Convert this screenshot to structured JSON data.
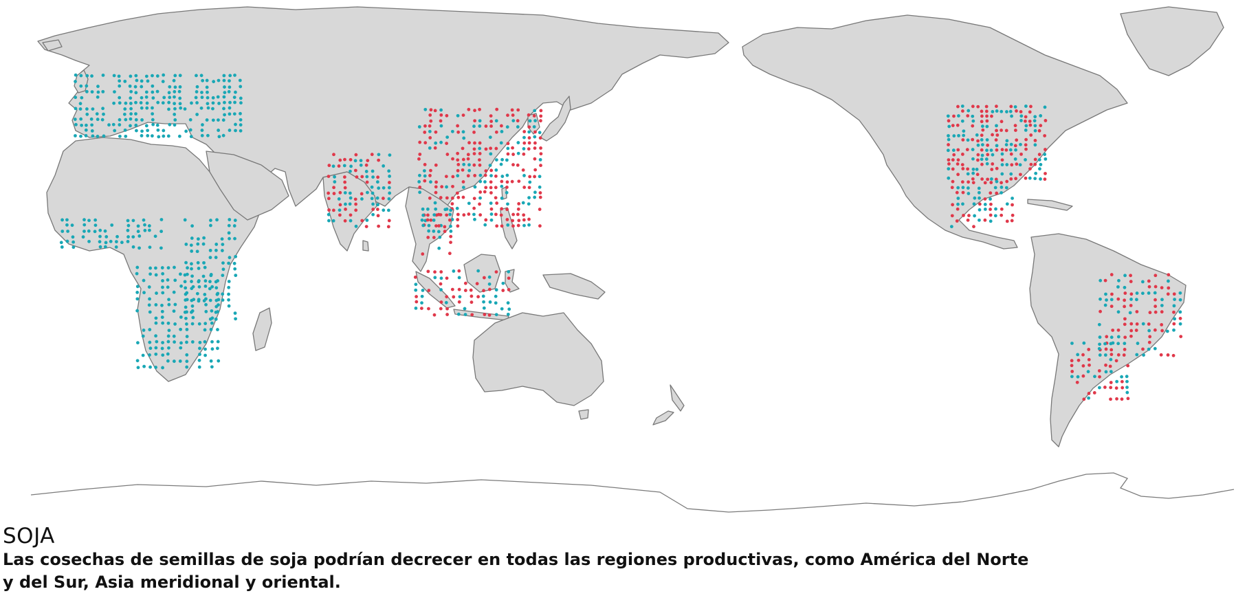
{
  "caption": {
    "title": "SOJA",
    "text": "Las cosechas de semillas de soja podrían decrecer en todas las regiones productivas, como América del Norte y del Sur, Asia meridional y oriental."
  },
  "colors": {
    "land": "#d8d8d8",
    "coastline": "#777777",
    "increase_dots": "#19a7b5",
    "decrease_dots": "#e0384a"
  },
  "map": {
    "projection": "equirectangular, Pacific-centred",
    "dot_clusters": [
      {
        "region": "Europe",
        "color": "increase_dots"
      },
      {
        "region": "West Africa",
        "color": "increase_dots"
      },
      {
        "region": "East Africa",
        "color": "increase_dots"
      },
      {
        "region": "Southern Africa",
        "color": "increase_dots"
      },
      {
        "region": "India",
        "color": "mixed"
      },
      {
        "region": "China",
        "color": "mixed"
      },
      {
        "region": "Southeast Asia",
        "color": "mixed"
      },
      {
        "region": "Indonesia",
        "color": "mixed"
      },
      {
        "region": "North America",
        "color": "mixed"
      },
      {
        "region": "Central America",
        "color": "mixed"
      },
      {
        "region": "Brazil",
        "color": "mixed"
      },
      {
        "region": "Southern Cone",
        "color": "mixed"
      }
    ]
  }
}
